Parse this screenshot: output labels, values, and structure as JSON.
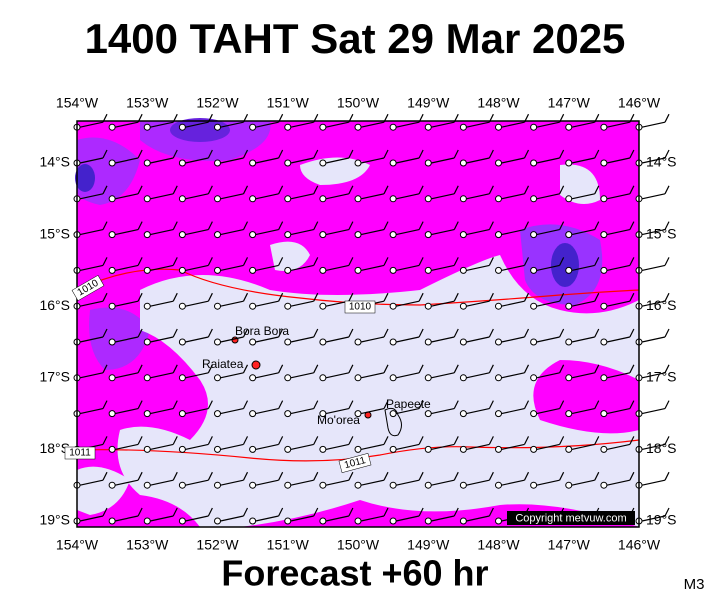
{
  "header": {
    "title": "1400 TAHT Sat 29 Mar 2025"
  },
  "axes": {
    "longitudes": [
      "154°W",
      "153°W",
      "152°W",
      "151°W",
      "150°W",
      "149°W",
      "148°W",
      "147°W",
      "146°W"
    ],
    "latitudes": [
      "14°S",
      "15°S",
      "16°S",
      "17°S",
      "18°S",
      "19°S"
    ]
  },
  "places": [
    "Bora Bora",
    "Raiatea",
    "Mo'orea",
    "Papeete"
  ],
  "isobars": [
    "1010",
    "1010",
    "1011",
    "1011"
  ],
  "copyright": "Copyright metvuw.com",
  "footer": {
    "forecast": "Forecast +60 hr",
    "model": "M3"
  }
}
